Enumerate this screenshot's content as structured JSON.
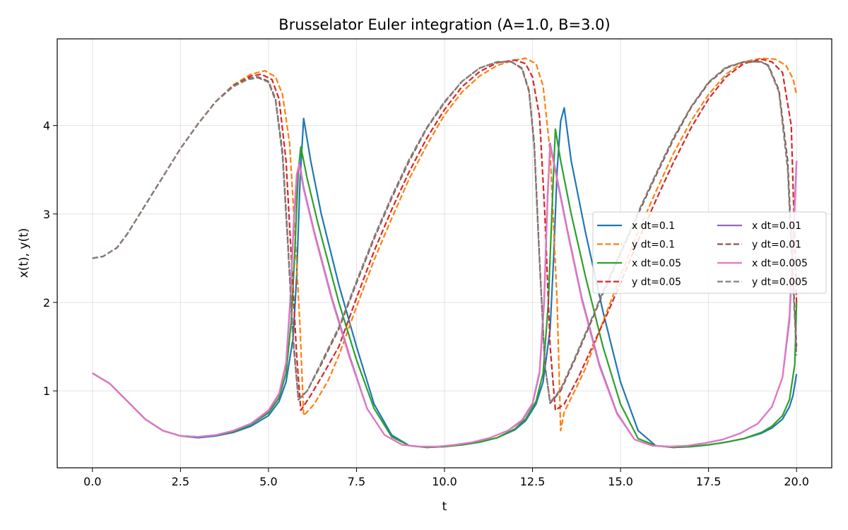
{
  "chart_data": {
    "type": "line",
    "title": "Brusselator Euler integration (A=1.0, B=3.0)",
    "xlabel": "t",
    "ylabel": "x(t), y(t)",
    "xlim": [
      -1.0,
      21.0
    ],
    "ylim": [
      0.13,
      4.98
    ],
    "xticks": [
      0,
      2.5,
      5,
      7.5,
      10,
      12.5,
      15,
      17.5,
      20
    ],
    "xtick_labels": [
      "0.0",
      "2.5",
      "5.0",
      "7.5",
      "10.0",
      "12.5",
      "15.0",
      "17.5",
      "20.0"
    ],
    "yticks": [
      1,
      2,
      3,
      4
    ],
    "ytick_labels": [
      "1",
      "2",
      "3",
      "4"
    ],
    "grid": true,
    "legend": {
      "placement": "center-right",
      "columns": 2
    },
    "series": [
      {
        "name": "x dt=0.1",
        "color": "#1f77b4",
        "dash": "solid",
        "x": [
          0,
          0.5,
          1,
          1.5,
          2,
          2.5,
          3,
          3.5,
          4,
          4.5,
          5,
          5.3,
          5.5,
          5.7,
          5.8,
          5.9,
          6.0,
          6.2,
          6.5,
          7,
          7.5,
          8,
          8.5,
          9,
          9.5,
          10,
          10.5,
          11,
          11.5,
          12,
          12.3,
          12.6,
          12.8,
          13.0,
          13.1,
          13.2,
          13.3,
          13.4,
          13.6,
          14,
          14.5,
          15,
          15.5,
          16,
          16.5,
          17,
          17.5,
          18,
          18.5,
          19,
          19.3,
          19.6,
          19.8,
          19.9,
          20
        ],
        "y": [
          1.2,
          1.08,
          0.88,
          0.68,
          0.55,
          0.49,
          0.47,
          0.49,
          0.53,
          0.6,
          0.72,
          0.88,
          1.1,
          1.6,
          2.3,
          3.4,
          4.08,
          3.6,
          3.0,
          2.2,
          1.5,
          0.85,
          0.5,
          0.38,
          0.36,
          0.37,
          0.39,
          0.42,
          0.47,
          0.56,
          0.66,
          0.85,
          1.1,
          1.7,
          2.5,
          3.5,
          4.05,
          4.2,
          3.6,
          2.8,
          1.9,
          1.1,
          0.55,
          0.38,
          0.36,
          0.37,
          0.39,
          0.42,
          0.46,
          0.52,
          0.58,
          0.68,
          0.82,
          0.95,
          1.19
        ]
      },
      {
        "name": "y dt=0.1",
        "color": "#ff7f0e",
        "dash": "dashed",
        "x": [
          0,
          0.3,
          0.7,
          1,
          1.5,
          2,
          2.5,
          3,
          3.5,
          4,
          4.5,
          4.9,
          5.2,
          5.4,
          5.6,
          5.75,
          5.9,
          6.0,
          6.3,
          6.7,
          7,
          7.5,
          8,
          8.5,
          9,
          9.5,
          10,
          10.5,
          11,
          11.5,
          12,
          12.3,
          12.6,
          12.8,
          13.0,
          13.2,
          13.3,
          13.4,
          13.7,
          14,
          14.5,
          15,
          15.5,
          16,
          16.5,
          17,
          17.5,
          18,
          18.5,
          19,
          19.4,
          19.7,
          19.9,
          20
        ],
        "y": [
          2.5,
          2.52,
          2.62,
          2.78,
          3.1,
          3.42,
          3.74,
          4.02,
          4.27,
          4.46,
          4.58,
          4.62,
          4.55,
          4.35,
          3.8,
          2.8,
          1.7,
          0.72,
          0.85,
          1.12,
          1.4,
          1.95,
          2.48,
          2.95,
          3.4,
          3.78,
          4.12,
          4.38,
          4.56,
          4.68,
          4.74,
          4.76,
          4.7,
          4.45,
          3.7,
          2.0,
          0.55,
          0.76,
          1.0,
          1.25,
          1.78,
          2.3,
          2.8,
          3.25,
          3.68,
          4.05,
          4.35,
          4.58,
          4.72,
          4.76,
          4.75,
          4.68,
          4.53,
          4.35
        ]
      },
      {
        "name": "x dt=0.05",
        "color": "#2ca02c",
        "dash": "solid",
        "x": [
          0,
          0.5,
          1,
          1.5,
          2,
          2.5,
          3,
          3.5,
          4,
          4.5,
          5,
          5.3,
          5.5,
          5.65,
          5.75,
          5.85,
          5.92,
          6.1,
          6.4,
          7,
          7.5,
          8,
          8.5,
          9,
          9.5,
          10,
          10.5,
          11,
          11.5,
          12,
          12.3,
          12.6,
          12.8,
          12.95,
          13.05,
          13.15,
          13.3,
          13.6,
          14,
          14.5,
          15,
          15.5,
          16,
          16.5,
          17,
          17.5,
          18,
          18.5,
          19,
          19.3,
          19.6,
          19.8,
          19.95,
          20
        ],
        "y": [
          1.2,
          1.08,
          0.88,
          0.68,
          0.55,
          0.49,
          0.48,
          0.5,
          0.54,
          0.62,
          0.75,
          0.92,
          1.2,
          1.8,
          2.6,
          3.5,
          3.76,
          3.4,
          2.9,
          2.0,
          1.35,
          0.8,
          0.48,
          0.38,
          0.36,
          0.37,
          0.39,
          0.42,
          0.47,
          0.57,
          0.68,
          0.88,
          1.2,
          2.0,
          3.0,
          3.96,
          3.6,
          3.0,
          2.3,
          1.5,
          0.85,
          0.46,
          0.38,
          0.36,
          0.37,
          0.39,
          0.42,
          0.46,
          0.53,
          0.6,
          0.72,
          0.9,
          1.3,
          2.0
        ]
      },
      {
        "name": "y dt=0.05",
        "color": "#d62728",
        "dash": "dashed",
        "x": [
          0,
          0.3,
          0.7,
          1,
          1.5,
          2,
          2.5,
          3,
          3.5,
          4,
          4.5,
          4.8,
          5.1,
          5.3,
          5.5,
          5.65,
          5.8,
          5.92,
          6.2,
          6.6,
          7,
          7.5,
          8,
          8.5,
          9,
          9.5,
          10,
          10.5,
          11,
          11.5,
          12,
          12.3,
          12.5,
          12.7,
          12.85,
          13.0,
          13.15,
          13.4,
          13.8,
          14.2,
          14.6,
          15,
          15.5,
          16,
          16.5,
          17,
          17.5,
          18,
          18.5,
          19,
          19.3,
          19.6,
          19.85,
          20
        ],
        "y": [
          2.5,
          2.52,
          2.62,
          2.78,
          3.1,
          3.42,
          3.74,
          4.02,
          4.27,
          4.45,
          4.56,
          4.58,
          4.52,
          4.3,
          3.6,
          2.5,
          1.4,
          0.78,
          0.95,
          1.22,
          1.5,
          2.05,
          2.58,
          3.05,
          3.48,
          3.86,
          4.18,
          4.44,
          4.61,
          4.71,
          4.74,
          4.7,
          4.55,
          4.1,
          3.0,
          1.5,
          0.78,
          0.85,
          1.15,
          1.5,
          1.85,
          2.22,
          2.7,
          3.15,
          3.58,
          3.97,
          4.3,
          4.55,
          4.7,
          4.75,
          4.72,
          4.6,
          4.0,
          2.0
        ]
      },
      {
        "name": "x dt=0.01",
        "color": "#9467bd",
        "dash": "solid",
        "x": [
          0,
          0.5,
          1,
          1.5,
          2,
          2.5,
          3,
          3.5,
          4,
          4.5,
          5,
          5.3,
          5.5,
          5.62,
          5.72,
          5.82,
          5.88,
          6.0,
          6.3,
          6.8,
          7.3,
          7.8,
          8.3,
          8.8,
          9.3,
          9.8,
          10.3,
          10.8,
          11.3,
          11.8,
          12.2,
          12.5,
          12.7,
          12.83,
          12.93,
          13.0,
          13.2,
          13.5,
          13.9,
          14.4,
          14.9,
          15.4,
          15.9,
          16.4,
          16.9,
          17.4,
          17.9,
          18.4,
          18.9,
          19.3,
          19.6,
          19.8,
          19.92,
          20
        ],
        "y": [
          1.2,
          1.08,
          0.88,
          0.68,
          0.55,
          0.49,
          0.48,
          0.5,
          0.55,
          0.63,
          0.77,
          0.96,
          1.3,
          2.0,
          2.9,
          3.45,
          3.58,
          3.3,
          2.8,
          2.05,
          1.4,
          0.8,
          0.5,
          0.39,
          0.37,
          0.37,
          0.39,
          0.42,
          0.47,
          0.55,
          0.66,
          0.85,
          1.2,
          2.0,
          3.2,
          3.8,
          3.4,
          2.8,
          2.05,
          1.3,
          0.75,
          0.45,
          0.38,
          0.37,
          0.38,
          0.41,
          0.45,
          0.52,
          0.63,
          0.82,
          1.15,
          1.8,
          2.8,
          3.6
        ]
      },
      {
        "name": "y dt=0.01",
        "color": "#8c564b",
        "dash": "dashed",
        "x": [
          0,
          0.3,
          0.7,
          1,
          1.5,
          2,
          2.5,
          3,
          3.5,
          4,
          4.4,
          4.7,
          5.0,
          5.2,
          5.4,
          5.55,
          5.7,
          5.85,
          6.1,
          6.5,
          7,
          7.5,
          8,
          8.5,
          9,
          9.5,
          10,
          10.5,
          11,
          11.5,
          11.9,
          12.2,
          12.4,
          12.55,
          12.7,
          12.85,
          13.0,
          13.3,
          13.7,
          14.1,
          14.5,
          15,
          15.5,
          16,
          16.5,
          17,
          17.5,
          18,
          18.5,
          19,
          19.2,
          19.5,
          19.75,
          19.9,
          20
        ],
        "y": [
          2.5,
          2.52,
          2.62,
          2.78,
          3.1,
          3.42,
          3.74,
          4.02,
          4.27,
          4.45,
          4.53,
          4.55,
          4.5,
          4.3,
          3.7,
          2.7,
          1.6,
          0.9,
          1.0,
          1.3,
          1.7,
          2.22,
          2.72,
          3.18,
          3.6,
          3.97,
          4.26,
          4.5,
          4.65,
          4.72,
          4.72,
          4.65,
          4.4,
          3.8,
          2.5,
          1.3,
          0.86,
          1.0,
          1.35,
          1.72,
          2.1,
          2.55,
          3.0,
          3.43,
          3.84,
          4.2,
          4.48,
          4.65,
          4.72,
          4.72,
          4.68,
          4.4,
          3.6,
          2.3,
          1.5
        ]
      },
      {
        "name": "x dt=0.005",
        "color": "#e377c2",
        "dash": "solid",
        "x": [
          0,
          0.5,
          1,
          1.5,
          2,
          2.5,
          3,
          3.5,
          4,
          4.5,
          5,
          5.3,
          5.5,
          5.62,
          5.72,
          5.8,
          5.87,
          6.0,
          6.3,
          6.8,
          7.3,
          7.8,
          8.3,
          8.8,
          9.3,
          9.8,
          10.3,
          10.8,
          11.3,
          11.8,
          12.2,
          12.5,
          12.7,
          12.83,
          12.93,
          13.0,
          13.2,
          13.5,
          13.9,
          14.4,
          14.9,
          15.4,
          15.9,
          16.4,
          16.9,
          17.4,
          17.9,
          18.4,
          18.9,
          19.3,
          19.6,
          19.8,
          19.92,
          20
        ],
        "y": [
          1.2,
          1.08,
          0.88,
          0.68,
          0.55,
          0.49,
          0.48,
          0.5,
          0.55,
          0.63,
          0.78,
          0.97,
          1.32,
          2.05,
          2.95,
          3.45,
          3.56,
          3.28,
          2.78,
          2.03,
          1.38,
          0.8,
          0.5,
          0.39,
          0.37,
          0.37,
          0.39,
          0.42,
          0.47,
          0.55,
          0.67,
          0.86,
          1.22,
          2.05,
          3.25,
          3.78,
          3.38,
          2.78,
          2.03,
          1.28,
          0.74,
          0.45,
          0.38,
          0.37,
          0.38,
          0.41,
          0.45,
          0.52,
          0.63,
          0.82,
          1.15,
          1.85,
          2.9,
          3.6
        ]
      },
      {
        "name": "y dt=0.005",
        "color": "#7f7f7f",
        "dash": "dashed",
        "x": [
          0,
          0.3,
          0.7,
          1,
          1.5,
          2,
          2.5,
          3,
          3.5,
          4,
          4.4,
          4.7,
          5.0,
          5.2,
          5.4,
          5.55,
          5.7,
          5.85,
          6.1,
          6.5,
          7,
          7.5,
          8,
          8.5,
          9,
          9.5,
          10,
          10.5,
          11,
          11.5,
          11.9,
          12.2,
          12.4,
          12.55,
          12.7,
          12.85,
          13.0,
          13.3,
          13.7,
          14.1,
          14.5,
          15,
          15.5,
          16,
          16.5,
          17,
          17.5,
          18,
          18.5,
          19,
          19.2,
          19.5,
          19.75,
          19.9,
          20
        ],
        "y": [
          2.5,
          2.52,
          2.62,
          2.78,
          3.1,
          3.42,
          3.74,
          4.02,
          4.27,
          4.44,
          4.52,
          4.54,
          4.49,
          4.28,
          3.65,
          2.65,
          1.55,
          0.9,
          1.0,
          1.32,
          1.72,
          2.24,
          2.74,
          3.2,
          3.62,
          3.98,
          4.27,
          4.5,
          4.65,
          4.72,
          4.72,
          4.64,
          4.38,
          3.75,
          2.45,
          1.3,
          0.87,
          1.02,
          1.37,
          1.74,
          2.12,
          2.57,
          3.02,
          3.45,
          3.86,
          4.21,
          4.49,
          4.66,
          4.72,
          4.72,
          4.67,
          4.38,
          3.5,
          2.2,
          1.4
        ]
      }
    ]
  }
}
